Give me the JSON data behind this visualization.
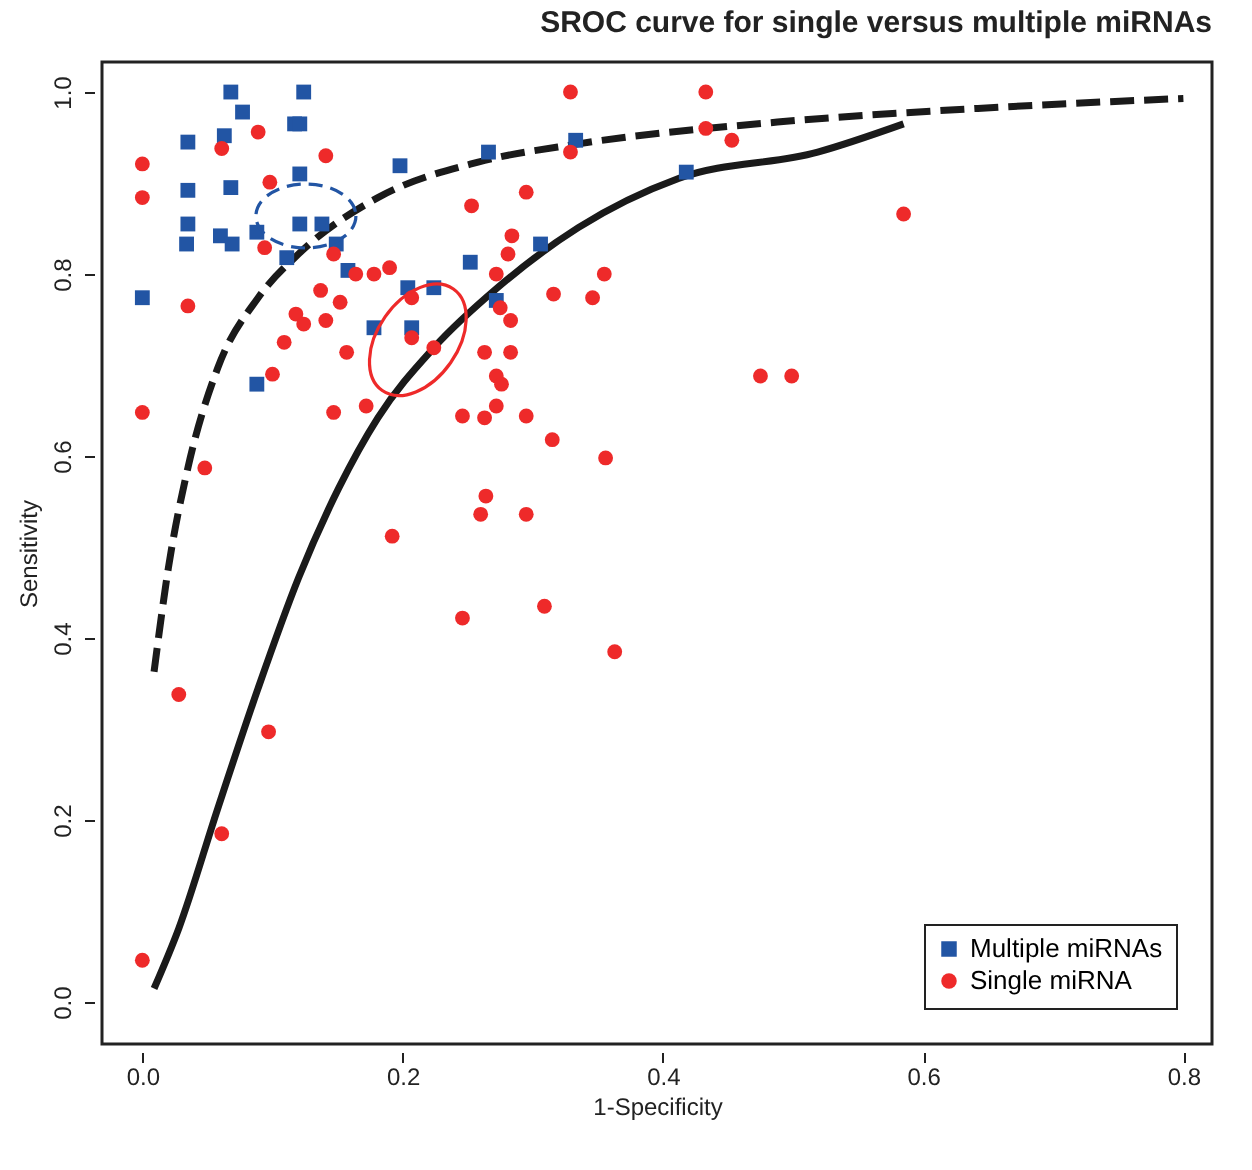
{
  "chart_data": {
    "type": "scatter",
    "title": "SROC curve for single versus multiple miRNAs",
    "xlabel": "1-Specificity",
    "ylabel": "Sensitivity",
    "xlim": [
      -0.031,
      0.822
    ],
    "ylim": [
      -0.046,
      1.033
    ],
    "xticks": [
      {
        "value": 0,
        "label": "0.0"
      },
      {
        "value": 0.2,
        "label": "0.2"
      },
      {
        "value": 0.4,
        "label": "0.4"
      },
      {
        "value": 0.6,
        "label": "0.6"
      },
      {
        "value": 0.8,
        "label": "0.8"
      }
    ],
    "yticks": [
      {
        "value": 0,
        "label": "0.0"
      },
      {
        "value": 0.2,
        "label": "0.2"
      },
      {
        "value": 0.4,
        "label": "0.4"
      },
      {
        "value": 0.6,
        "label": "0.6"
      },
      {
        "value": 0.8,
        "label": "0.8"
      },
      {
        "value": 1,
        "label": "1.0"
      }
    ],
    "grid": false,
    "legend": "bottom right",
    "series": [
      {
        "name": "Multiple miRNAs",
        "marker": "square",
        "color": "#2255a4",
        "x": [
          0.068,
          0.124,
          0.077,
          0.035,
          0.063,
          0.117,
          0.121,
          0.121,
          0.198,
          0.266,
          0.035,
          0.068,
          0.035,
          0.034,
          0.06,
          0.069,
          0.088,
          0.121,
          0.138,
          0.149,
          0.111,
          0.158,
          0.204,
          0.224,
          0.252,
          0.272,
          0.0,
          0.178,
          0.207,
          0.088,
          0.306,
          0.333,
          0.418
        ],
        "values": [
          1.0,
          1.0,
          0.978,
          0.945,
          0.952,
          0.965,
          0.965,
          0.91,
          0.919,
          0.934,
          0.892,
          0.895,
          0.855,
          0.833,
          0.842,
          0.833,
          0.846,
          0.855,
          0.855,
          0.833,
          0.818,
          0.804,
          0.785,
          0.785,
          0.813,
          0.771,
          0.774,
          0.741,
          0.741,
          0.679,
          0.833,
          0.947,
          0.912
        ]
      },
      {
        "name": "Single miRNA",
        "marker": "circle",
        "color": "#ee2a2a",
        "x": [
          0.089,
          0.061,
          0.141,
          0.0,
          0.0,
          0.098,
          0.253,
          0.295,
          0.284,
          0.281,
          0.272,
          0.094,
          0.147,
          0.164,
          0.178,
          0.19,
          0.137,
          0.152,
          0.035,
          0.207,
          0.118,
          0.124,
          0.141,
          0.275,
          0.283,
          0.109,
          0.207,
          0.157,
          0.224,
          0.263,
          0.283,
          0.1,
          0.272,
          0.276,
          0.0,
          0.147,
          0.172,
          0.246,
          0.263,
          0.272,
          0.295,
          0.048,
          0.329,
          0.433,
          0.433,
          0.453,
          0.329,
          0.355,
          0.316,
          0.346,
          0.585,
          0.475,
          0.499,
          0.315,
          0.356,
          0.264,
          0.26,
          0.295,
          0.192,
          0.246,
          0.309,
          0.363,
          0.028,
          0.097,
          0.061,
          0.0
        ],
        "values": [
          0.956,
          0.938,
          0.93,
          0.921,
          0.884,
          0.901,
          0.875,
          0.89,
          0.842,
          0.822,
          0.8,
          0.829,
          0.822,
          0.8,
          0.8,
          0.807,
          0.782,
          0.769,
          0.765,
          0.774,
          0.756,
          0.745,
          0.749,
          0.763,
          0.749,
          0.725,
          0.73,
          0.714,
          0.719,
          0.714,
          0.714,
          0.69,
          0.688,
          0.679,
          0.648,
          0.648,
          0.655,
          0.644,
          0.642,
          0.655,
          0.644,
          0.587,
          1.0,
          1.0,
          0.96,
          0.947,
          0.934,
          0.8,
          0.778,
          0.774,
          0.866,
          0.688,
          0.688,
          0.618,
          0.598,
          0.556,
          0.536,
          0.536,
          0.512,
          0.422,
          0.435,
          0.385,
          0.338,
          0.297,
          0.185,
          0.046
        ]
      },
      {
        "type": "line",
        "color": "#1a1a1a",
        "line_style": "dashed",
        "x": [
          0.009,
          0.02,
          0.035,
          0.058,
          0.089,
          0.12,
          0.181,
          0.258,
          0.335,
          0.488,
          0.642,
          0.8
        ],
        "values": [
          0.363,
          0.477,
          0.587,
          0.697,
          0.774,
          0.822,
          0.884,
          0.923,
          0.943,
          0.967,
          0.982,
          0.993
        ]
      },
      {
        "type": "line",
        "color": "#1a1a1a",
        "line_style": "solid",
        "x": [
          0.009,
          0.028,
          0.058,
          0.089,
          0.12,
          0.151,
          0.181,
          0.224,
          0.273,
          0.335,
          0.412,
          0.519,
          0.585
        ],
        "values": [
          0.015,
          0.081,
          0.213,
          0.345,
          0.466,
          0.565,
          0.642,
          0.719,
          0.785,
          0.851,
          0.905,
          0.934,
          0.965
        ]
      }
    ]
  }
}
